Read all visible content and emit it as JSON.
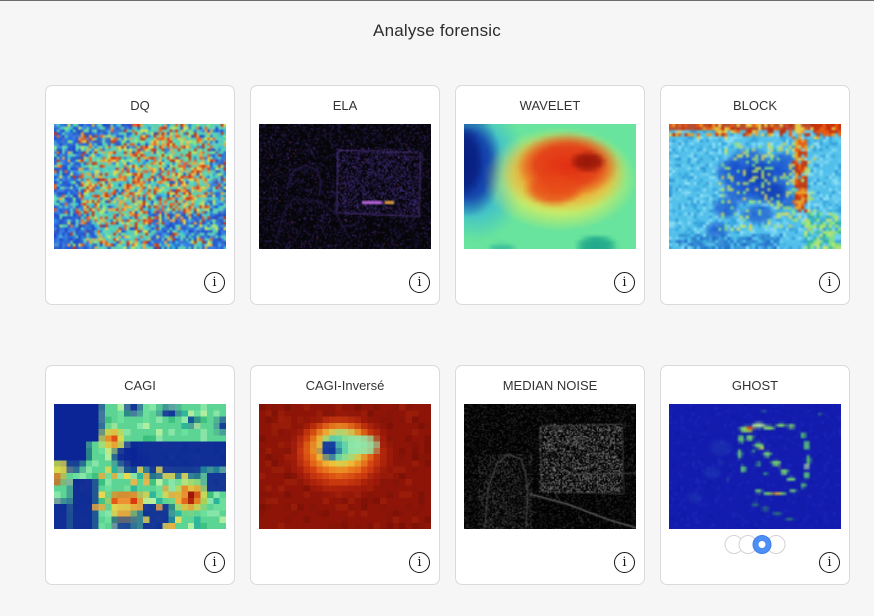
{
  "window": {
    "title": "Analyse forensic"
  },
  "cards": [
    {
      "id": "dq",
      "title": "DQ"
    },
    {
      "id": "ela",
      "title": "ELA"
    },
    {
      "id": "wavelet",
      "title": "WAVELET"
    },
    {
      "id": "block",
      "title": "BLOCK"
    },
    {
      "id": "cagi",
      "title": "CAGI"
    },
    {
      "id": "cagi_inverse",
      "title": "CAGI-Inversé"
    },
    {
      "id": "median_noise",
      "title": "MEDIAN NOISE"
    },
    {
      "id": "ghost",
      "title": "GHOST"
    }
  ],
  "ghost_pagination": {
    "dot_count": 4,
    "active_index": 2
  },
  "info_button": {
    "glyph": "i"
  },
  "colors": {
    "page_bg": "#f6f6f7",
    "card_bg": "#ffffff",
    "card_border": "#d9d9de",
    "active_dot": "#4d8ef7",
    "title_color": "#2d2d2d"
  }
}
